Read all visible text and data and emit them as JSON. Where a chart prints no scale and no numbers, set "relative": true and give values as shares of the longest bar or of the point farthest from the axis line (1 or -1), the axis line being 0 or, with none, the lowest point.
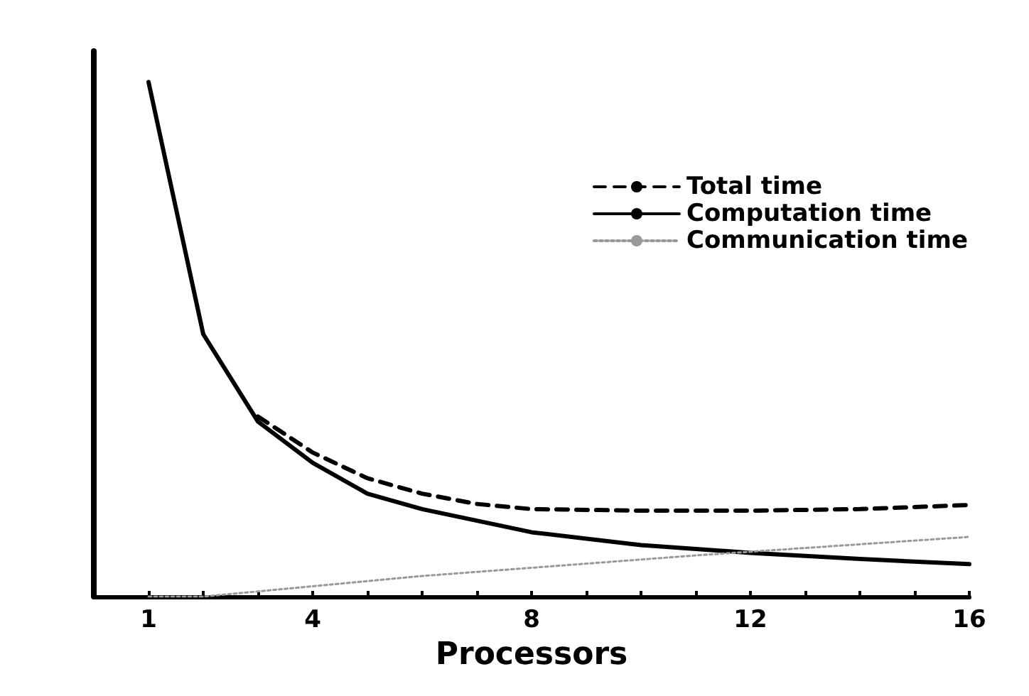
{
  "chart_data": {
    "type": "line",
    "xlabel": "Processors",
    "relative": true,
    "xlim": [
      0,
      16
    ],
    "xticks": [
      {
        "value": 0,
        "label": null
      },
      1,
      {
        "value": 2,
        "label": null
      },
      {
        "value": 3,
        "label": null
      },
      4,
      {
        "value": 5,
        "label": null
      },
      {
        "value": 6,
        "label": null
      },
      {
        "value": 7,
        "label": null
      },
      8,
      {
        "value": 9,
        "label": null
      },
      {
        "value": 10,
        "label": null
      },
      {
        "value": 11,
        "label": null
      },
      12,
      {
        "value": 13,
        "label": null
      },
      {
        "value": 14,
        "label": null
      },
      {
        "value": 15,
        "label": null
      },
      16
    ],
    "legend": "top right",
    "grid": false,
    "marker": "none",
    "series": [
      {
        "name": "Total time",
        "color": "#000000",
        "line_style": "dashed",
        "x": [
          3,
          4,
          5,
          6,
          7,
          8,
          10,
          12,
          14,
          16
        ],
        "values": [
          0.35,
          0.28,
          0.23,
          0.2,
          0.18,
          0.17,
          0.167,
          0.167,
          0.17,
          0.178
        ]
      },
      {
        "name": "Computation time",
        "color": "#000000",
        "line_style": "solid",
        "x": [
          1,
          2,
          3,
          4,
          5,
          6,
          8,
          10,
          12,
          14,
          16
        ],
        "values": [
          1.0,
          0.51,
          0.34,
          0.26,
          0.2,
          0.17,
          0.125,
          0.1,
          0.085,
          0.073,
          0.063
        ]
      },
      {
        "name": "Communication time",
        "color": "#999999",
        "line_style": "dotted",
        "x": [
          1,
          2,
          3,
          6,
          11,
          16
        ],
        "values": [
          0,
          0,
          0.01,
          0.04,
          0.08,
          0.116
        ]
      }
    ]
  }
}
